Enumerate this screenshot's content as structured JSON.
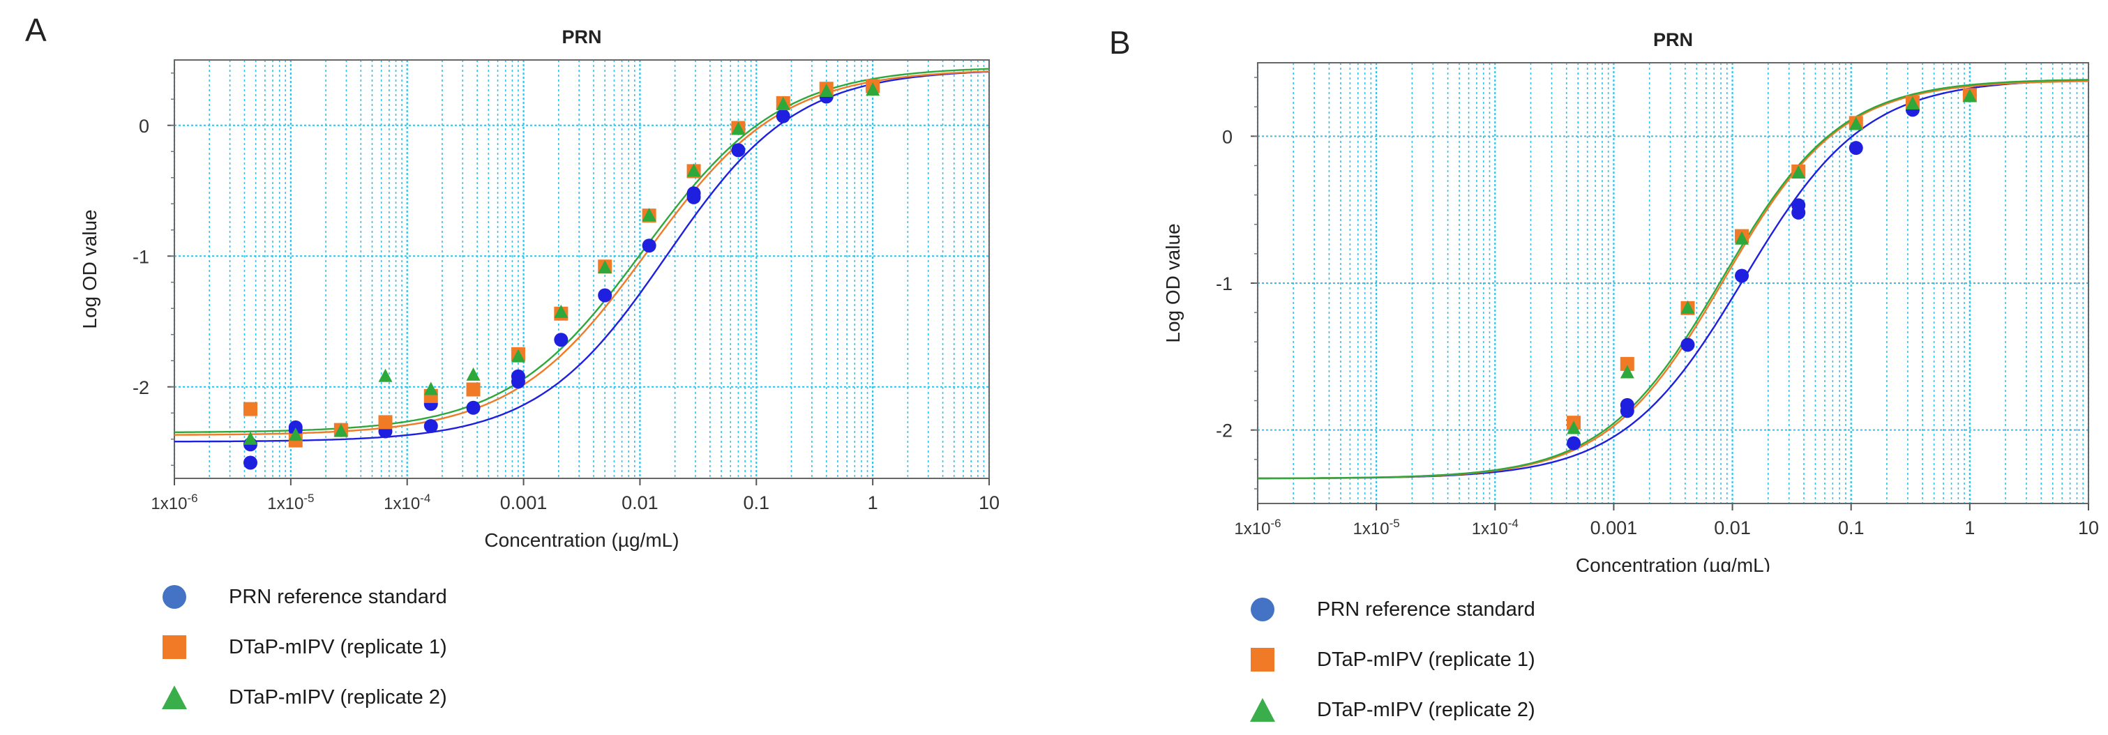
{
  "colors": {
    "reference": "#1f1fe0",
    "replicate1": "#f07a26",
    "replicate2": "#2ea83a",
    "grid": "#33c0e8",
    "frame": "#666666"
  },
  "legend": [
    {
      "series": "reference",
      "label": "PRN reference standard",
      "marker": "circle"
    },
    {
      "series": "replicate1",
      "label": "DTaP-mIPV (replicate 1)",
      "marker": "square"
    },
    {
      "series": "replicate2",
      "label": "DTaP-mIPV (replicate 2)",
      "marker": "triangle"
    }
  ],
  "chart_data": [
    {
      "panel": "A",
      "type": "scatter",
      "title": "PRN",
      "xlabel": "Concentration (µg/mL)",
      "ylabel": "Log OD value",
      "xscale": "log",
      "xlim": [
        1e-06,
        10
      ],
      "ylim": [
        -2.7,
        0.5
      ],
      "xticks": [
        1e-06,
        1e-05,
        0.0001,
        0.001,
        0.01,
        0.1,
        1,
        10
      ],
      "xtick_labels": [
        "1x10^-6",
        "1x10^-5",
        "1x10^-4",
        "0.001",
        "0.01",
        "0.1",
        "1",
        "10"
      ],
      "yticks": [
        0,
        -1,
        -2
      ],
      "ytick_labels": [
        "0",
        "-1",
        "-2"
      ],
      "grid": true,
      "series": [
        {
          "key": "reference",
          "name": "PRN reference standard",
          "marker": "circle",
          "curve": {
            "bottom": -2.42,
            "top": 0.43,
            "ec50": 0.017,
            "hill": 0.78
          },
          "points": [
            [
              4.5e-06,
              -2.44
            ],
            [
              4.5e-06,
              -2.58
            ],
            [
              1.1e-05,
              -2.31
            ],
            [
              1.1e-05,
              -2.33
            ],
            [
              2.7e-05,
              -2.33
            ],
            [
              6.5e-05,
              -2.34
            ],
            [
              0.00016,
              -2.3
            ],
            [
              0.00016,
              -2.13
            ],
            [
              0.00037,
              -2.16
            ],
            [
              0.0009,
              -1.96
            ],
            [
              0.0009,
              -1.92
            ],
            [
              0.0021,
              -1.64
            ],
            [
              0.005,
              -1.3
            ],
            [
              0.012,
              -0.92
            ],
            [
              0.029,
              -0.55
            ],
            [
              0.029,
              -0.52
            ],
            [
              0.07,
              -0.19
            ],
            [
              0.17,
              0.07
            ],
            [
              0.4,
              0.22
            ],
            [
              1.0,
              0.28
            ]
          ]
        },
        {
          "key": "replicate1",
          "name": "DTaP-mIPV (replicate 1)",
          "marker": "square",
          "curve": {
            "bottom": -2.37,
            "top": 0.43,
            "ec50": 0.0115,
            "hill": 0.75
          },
          "points": [
            [
              4.5e-06,
              -2.17
            ],
            [
              1.1e-05,
              -2.41
            ],
            [
              2.7e-05,
              -2.33
            ],
            [
              6.5e-05,
              -2.27
            ],
            [
              0.00016,
              -2.07
            ],
            [
              0.00037,
              -2.02
            ],
            [
              0.0009,
              -1.75
            ],
            [
              0.0021,
              -1.44
            ],
            [
              0.005,
              -1.08
            ],
            [
              0.012,
              -0.69
            ],
            [
              0.029,
              -0.35
            ],
            [
              0.07,
              -0.02
            ],
            [
              0.17,
              0.17
            ],
            [
              0.4,
              0.28
            ],
            [
              1.0,
              0.3
            ]
          ]
        },
        {
          "key": "replicate2",
          "name": "DTaP-mIPV (replicate 2)",
          "marker": "triangle",
          "curve": {
            "bottom": -2.35,
            "top": 0.45,
            "ec50": 0.0108,
            "hill": 0.74
          },
          "points": [
            [
              4.5e-06,
              -2.4
            ],
            [
              1.1e-05,
              -2.37
            ],
            [
              2.7e-05,
              -2.34
            ],
            [
              6.5e-05,
              -1.92
            ],
            [
              0.00016,
              -2.02
            ],
            [
              0.00037,
              -1.91
            ],
            [
              0.0009,
              -1.77
            ],
            [
              0.0021,
              -1.43
            ],
            [
              0.005,
              -1.09
            ],
            [
              0.012,
              -0.69
            ],
            [
              0.029,
              -0.35
            ],
            [
              0.07,
              -0.03
            ],
            [
              0.17,
              0.16
            ],
            [
              0.4,
              0.26
            ],
            [
              1.0,
              0.27
            ]
          ]
        }
      ]
    },
    {
      "panel": "B",
      "type": "scatter",
      "title": "PRN",
      "xlabel": "Concentration (µg/mL)",
      "ylabel": "Log OD value",
      "xscale": "log",
      "xlim": [
        1e-06,
        10
      ],
      "ylim": [
        -2.5,
        0.5
      ],
      "xticks": [
        1e-06,
        1e-05,
        0.0001,
        0.001,
        0.01,
        0.1,
        1,
        10
      ],
      "xtick_labels": [
        "1x10^-6",
        "1x10^-5",
        "1x10^-4",
        "0.001",
        "0.01",
        "0.1",
        "1",
        "10"
      ],
      "yticks": [
        0,
        -1,
        -2
      ],
      "ytick_labels": [
        "0",
        "-1",
        "-2"
      ],
      "grid": true,
      "series": [
        {
          "key": "reference",
          "name": "PRN reference standard",
          "marker": "circle",
          "curve": {
            "bottom": -2.33,
            "top": 0.39,
            "ec50": 0.0125,
            "hill": 0.85
          },
          "points": [
            [
              0.00046,
              -2.09
            ],
            [
              0.0013,
              -1.83
            ],
            [
              0.0013,
              -1.87
            ],
            [
              0.0042,
              -1.42
            ],
            [
              0.012,
              -0.95
            ],
            [
              0.036,
              -0.52
            ],
            [
              0.036,
              -0.47
            ],
            [
              0.11,
              -0.08
            ],
            [
              0.33,
              0.18
            ],
            [
              1.0,
              0.28
            ]
          ]
        },
        {
          "key": "replicate1",
          "name": "DTaP-mIPV (replicate 1)",
          "marker": "square",
          "curve": {
            "bottom": -2.33,
            "top": 0.38,
            "ec50": 0.0085,
            "hill": 0.88
          },
          "points": [
            [
              0.00046,
              -1.95
            ],
            [
              0.0013,
              -1.55
            ],
            [
              0.0042,
              -1.17
            ],
            [
              0.012,
              -0.68
            ],
            [
              0.036,
              -0.24
            ],
            [
              0.11,
              0.09
            ],
            [
              0.33,
              0.23
            ],
            [
              1.0,
              0.28
            ]
          ]
        },
        {
          "key": "replicate2",
          "name": "DTaP-mIPV (replicate 2)",
          "marker": "triangle",
          "curve": {
            "bottom": -2.33,
            "top": 0.39,
            "ec50": 0.0082,
            "hill": 0.87
          },
          "points": [
            [
              0.00046,
              -1.99
            ],
            [
              0.0013,
              -1.61
            ],
            [
              0.0042,
              -1.17
            ],
            [
              0.012,
              -0.7
            ],
            [
              0.036,
              -0.25
            ],
            [
              0.11,
              0.08
            ],
            [
              0.33,
              0.22
            ],
            [
              1.0,
              0.27
            ]
          ]
        }
      ]
    }
  ]
}
